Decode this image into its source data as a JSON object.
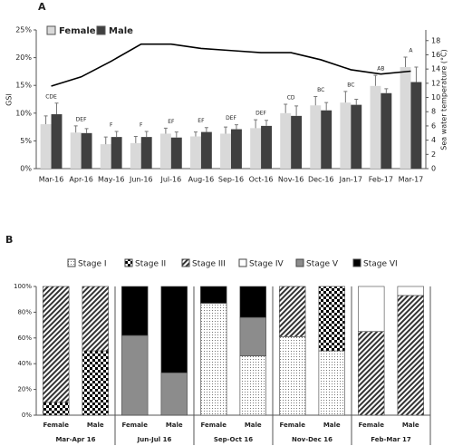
{
  "chart_data": [
    {
      "type": "bar",
      "panel": "A",
      "ylabel": "GSI",
      "y2label": "Sea water temperature (°C)",
      "categories": [
        "Mar-16",
        "Apr-16",
        "May-16",
        "Jun-16",
        "Jul-16",
        "Aug-16",
        "Sep-16",
        "Oct-16",
        "Nov-16",
        "Dec-16",
        "Jan-17",
        "Feb-17",
        "Mar-17"
      ],
      "series": [
        {
          "name": "Female",
          "color": "#d9d9d9",
          "values": [
            8.0,
            6.5,
            4.4,
            4.6,
            6.3,
            5.8,
            6.3,
            7.3,
            10.0,
            11.4,
            11.9,
            14.9,
            18.3
          ],
          "errors": [
            1.5,
            1.2,
            1.3,
            1.2,
            1.0,
            0.8,
            1.2,
            1.5,
            1.6,
            1.6,
            2.0,
            1.9,
            1.8
          ]
        },
        {
          "name": "Male",
          "color": "#404040",
          "values": [
            9.8,
            6.4,
            5.7,
            5.7,
            5.6,
            6.6,
            7.1,
            7.7,
            9.5,
            10.5,
            11.5,
            13.6,
            15.6
          ],
          "errors": [
            2.0,
            0.8,
            1.0,
            1.0,
            1.0,
            0.8,
            0.8,
            1.0,
            1.8,
            1.4,
            1.0,
            0.8,
            2.7
          ]
        }
      ],
      "line": {
        "axis": "y2",
        "color": "#000000",
        "values": [
          11.6,
          12.9,
          15.1,
          17.5,
          17.5,
          16.9,
          16.6,
          16.3,
          16.3,
          15.3,
          13.9,
          13.3,
          13.7
        ]
      },
      "annotations": [
        "CDE",
        "DEF",
        "F",
        "F",
        "EF",
        "EF",
        "DEF",
        "DEF",
        "CD",
        "BC",
        "BC",
        "AB",
        "A"
      ],
      "ylim": [
        0,
        25
      ],
      "yticks": [
        {
          "value": 0,
          "label": "0%"
        },
        {
          "value": 5,
          "label": "5%"
        },
        {
          "value": 10,
          "label": "10%"
        },
        {
          "value": 15,
          "label": "15%"
        },
        {
          "value": 20,
          "label": "20%"
        },
        {
          "value": 25,
          "label": "25%"
        }
      ],
      "y2lim": [
        0,
        19.5
      ],
      "y2ticks": [
        0,
        2,
        4,
        6,
        8,
        10,
        12,
        14,
        16,
        18
      ]
    },
    {
      "type": "stacked-bar",
      "panel": "B",
      "categories": [
        "Female",
        "Male",
        "Female",
        "Male",
        "Female",
        "Male",
        "Female",
        "Male",
        "Female",
        "Male"
      ],
      "groups": [
        "Mar-Apr 16",
        "Jun-Jul 16",
        "Sep-Oct 16",
        "Nov-Dec 16",
        "Feb-Mar 17"
      ],
      "series": [
        {
          "name": "Stage I",
          "color": "#555555",
          "values": [
            0,
            0,
            0,
            0,
            87,
            46,
            61,
            50,
            0,
            0
          ]
        },
        {
          "name": "Stage II",
          "color": "#000000",
          "values": [
            10,
            50,
            0,
            0,
            0,
            0,
            0,
            50,
            0,
            0
          ]
        },
        {
          "name": "Stage III",
          "color": "#222222",
          "values": [
            90,
            50,
            0,
            0,
            0,
            0,
            39,
            0,
            65,
            93
          ]
        },
        {
          "name": "Stage IV",
          "color": "#ffffff",
          "values": [
            0,
            0,
            0,
            0,
            0,
            0,
            0,
            0,
            35,
            7
          ]
        },
        {
          "name": "Stage V",
          "color": "#8c8c8c",
          "values": [
            0,
            0,
            62,
            33,
            0,
            30,
            0,
            0,
            0,
            0
          ]
        },
        {
          "name": "Stage VI",
          "color": "#000000",
          "values": [
            0,
            0,
            38,
            67,
            13,
            24,
            0,
            0,
            0,
            0
          ]
        }
      ],
      "ylim": [
        0,
        100
      ],
      "yticks": [
        {
          "value": 0,
          "label": "0%"
        },
        {
          "value": 20,
          "label": "20%"
        },
        {
          "value": 40,
          "label": "40%"
        },
        {
          "value": 60,
          "label": "60%"
        },
        {
          "value": 80,
          "label": "80%"
        },
        {
          "value": 100,
          "label": "100%"
        }
      ]
    }
  ]
}
